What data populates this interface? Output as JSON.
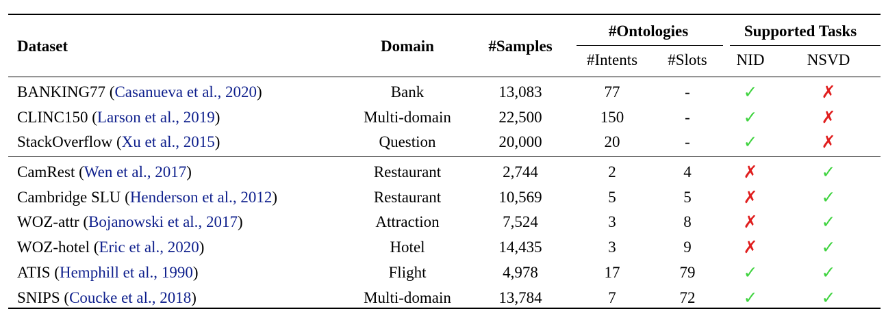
{
  "header": {
    "dataset": "Dataset",
    "domain": "Domain",
    "samples": "#Samples",
    "ontologies": "#Ontologies",
    "intents": "#Intents",
    "slots": "#Slots",
    "supported_tasks": "Supported Tasks",
    "nid": "NID",
    "nsvd": "NSVD"
  },
  "marks": {
    "check": "✓",
    "cross": "✗"
  },
  "groups": [
    [
      {
        "name": "BANKING77 (",
        "cite": "Casanueva et al., ",
        "year": "2020",
        "close": ")",
        "domain": "Bank",
        "samples": "13,083",
        "intents": "77",
        "slots": "-",
        "nid": "check",
        "nsvd": "cross"
      },
      {
        "name": "CLINC150 (",
        "cite": "Larson et al., ",
        "year": "2019",
        "close": ")",
        "domain": "Multi-domain",
        "samples": "22,500",
        "intents": "150",
        "slots": "-",
        "nid": "check",
        "nsvd": "cross"
      },
      {
        "name": "StackOverflow (",
        "cite": "Xu et al., ",
        "year": "2015",
        "close": ")",
        "domain": "Question",
        "samples": "20,000",
        "intents": "20",
        "slots": "-",
        "nid": "check",
        "nsvd": "cross"
      }
    ],
    [
      {
        "name": "CamRest (",
        "cite": "Wen et al., ",
        "year": "2017",
        "close": ")",
        "domain": "Restaurant",
        "samples": "2,744",
        "intents": "2",
        "slots": "4",
        "nid": "cross",
        "nsvd": "check"
      },
      {
        "name": "Cambridge SLU (",
        "cite": "Henderson et al., ",
        "year": "2012",
        "close": ")",
        "domain": "Restaurant",
        "samples": "10,569",
        "intents": "5",
        "slots": "5",
        "nid": "cross",
        "nsvd": "check"
      },
      {
        "name": "WOZ-attr (",
        "cite": "Bojanowski et al., ",
        "year": "2017",
        "close": ")",
        "domain": "Attraction",
        "samples": "7,524",
        "intents": "3",
        "slots": "8",
        "nid": "cross",
        "nsvd": "check"
      },
      {
        "name": "WOZ-hotel (",
        "cite": "Eric et al., ",
        "year": "2020",
        "close": ")",
        "domain": "Hotel",
        "samples": "14,435",
        "intents": "3",
        "slots": "9",
        "nid": "cross",
        "nsvd": "check"
      },
      {
        "name": "ATIS (",
        "cite": "Hemphill et al., ",
        "year": "1990",
        "close": ")",
        "domain": "Flight",
        "samples": "4,978",
        "intents": "17",
        "slots": "79",
        "nid": "check",
        "nsvd": "check"
      },
      {
        "name": "SNIPS (",
        "cite": "Coucke et al., ",
        "year": "2018",
        "close": ")",
        "domain": "Multi-domain",
        "samples": "13,784",
        "intents": "7",
        "slots": "72",
        "nid": "check",
        "nsvd": "check"
      }
    ]
  ]
}
